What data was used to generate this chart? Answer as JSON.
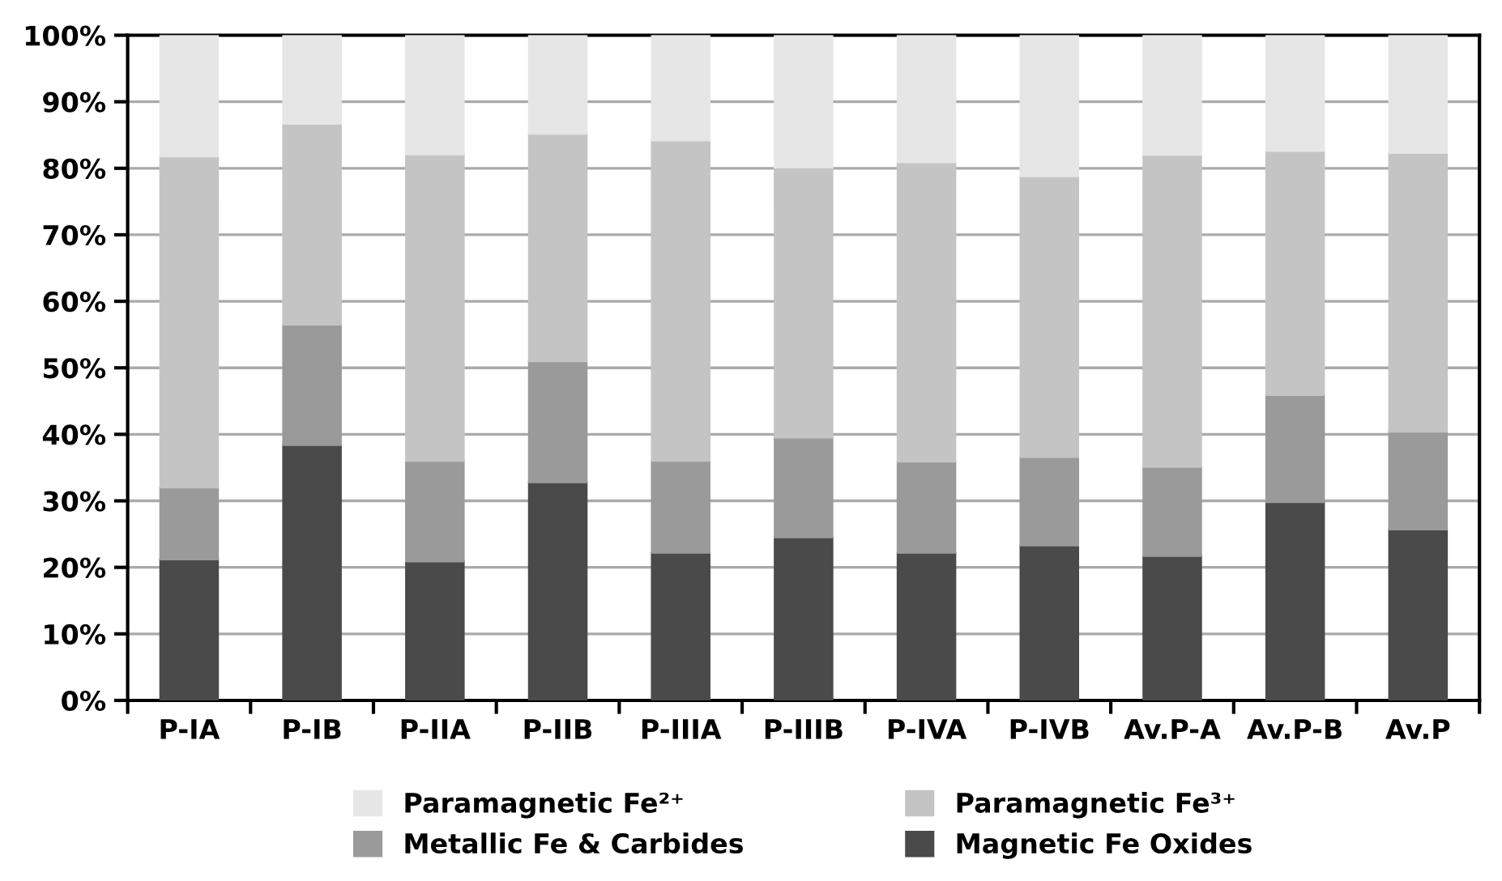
{
  "chart_data": {
    "type": "bar",
    "stacked": true,
    "categories": [
      "P-IA",
      "P-IB",
      "P-IIA",
      "P-IIB",
      "P-IIIA",
      "P-IIIB",
      "P-IVA",
      "P-IVB",
      "Av.P-A",
      "Av.P-B",
      "Av.P"
    ],
    "series": [
      {
        "name": "Magnetic Fe Oxides",
        "color": "#4a4a4a",
        "values": [
          21.2,
          38.4,
          20.9,
          32.8,
          22.2,
          24.5,
          22.2,
          23.3,
          21.7,
          29.8,
          25.7
        ]
      },
      {
        "name": "Metallic Fe & Carbides",
        "color": "#9a9a9a",
        "values": [
          10.8,
          18.1,
          15.1,
          18.2,
          13.8,
          15.0,
          13.7,
          13.3,
          13.4,
          16.1,
          14.7
        ]
      },
      {
        "name": "Paramagnetic Fe³⁺",
        "color": "#c4c4c4",
        "values": [
          49.8,
          30.2,
          46.1,
          34.2,
          48.2,
          40.6,
          45.0,
          42.2,
          46.9,
          36.7,
          41.9
        ]
      },
      {
        "name": "Paramagnetic Fe²⁺",
        "color": "#e6e6e6",
        "values": [
          18.2,
          13.3,
          17.9,
          14.8,
          15.8,
          19.9,
          19.1,
          21.2,
          18.0,
          17.4,
          17.7
        ]
      }
    ],
    "ylim": [
      0,
      100
    ],
    "yticks": [
      {
        "value": 0,
        "label": "0%"
      },
      {
        "value": 10,
        "label": "10%"
      },
      {
        "value": 20,
        "label": "20%"
      },
      {
        "value": 30,
        "label": "30%"
      },
      {
        "value": 40,
        "label": "40%"
      },
      {
        "value": 50,
        "label": "50%"
      },
      {
        "value": 60,
        "label": "60%"
      },
      {
        "value": 70,
        "label": "70%"
      },
      {
        "value": 80,
        "label": "80%"
      },
      {
        "value": 90,
        "label": "90%"
      },
      {
        "value": 100,
        "label": "100%"
      }
    ],
    "grid": "y",
    "legend": "bottom"
  }
}
